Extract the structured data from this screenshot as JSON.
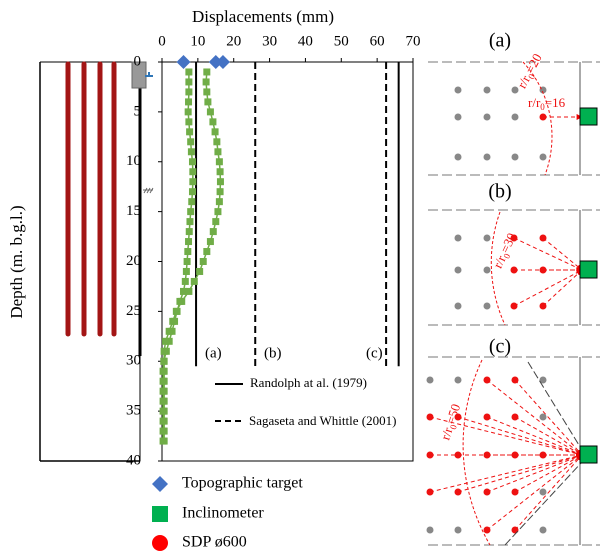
{
  "chart_data": {
    "type": "scatter",
    "x_label": "Displacements (mm)",
    "y_label": "Depth (m. b.g.l.)",
    "xlim": [
      0,
      70
    ],
    "xticks": [
      0,
      10,
      20,
      30,
      40,
      50,
      60,
      70
    ],
    "ylim": [
      0,
      40
    ],
    "yticks": [
      0,
      5,
      10,
      15,
      20,
      25,
      30,
      35,
      40
    ],
    "y_inverted": true,
    "series": [
      {
        "name": "Topographic target",
        "color": "#4472c4",
        "marker": "diamond",
        "x": [
          6,
          15,
          17
        ],
        "y": [
          0,
          0,
          0
        ]
      },
      {
        "name": "Inclinometer",
        "color": "#70ad47",
        "marker": "square",
        "x": [
          7.5,
          7.5,
          7.5,
          7.4,
          7.3,
          7.5,
          7.7,
          8.0,
          8.2,
          8.5,
          8.6,
          8.6,
          8.5,
          8.3,
          8.0,
          7.8,
          7.6,
          7.4,
          7.2,
          7.0,
          6.8,
          6.5,
          6.0,
          5.0,
          4.2,
          3.5,
          2.8,
          2.0,
          1.2,
          0.5,
          0.3,
          0.3,
          0.3,
          0.3,
          0.3,
          0.3,
          0.3,
          0.3,
          null,
          12.5,
          12.3,
          12.5,
          12.8,
          13.5,
          14.2,
          14.8,
          15.3,
          15.6,
          16.0,
          16.2,
          16.3,
          16.2,
          16.0,
          15.6,
          15.0,
          14.3,
          13.5,
          12.5,
          11.5,
          10.5,
          9.0,
          7.5,
          5.5,
          4.0,
          3.0,
          2.0,
          1.0,
          0.6,
          0.6,
          0.6,
          0.6,
          0.6,
          0.6,
          0.6,
          0.6,
          0.6,
          0.6
        ],
        "y": [
          1,
          2,
          3,
          4,
          5,
          6,
          7,
          8,
          9,
          10,
          11,
          12,
          13,
          14,
          15,
          16,
          17,
          18,
          19,
          20,
          21,
          22,
          23,
          24,
          25,
          26,
          27,
          28,
          29,
          30,
          31,
          32,
          33,
          34,
          35,
          36,
          37,
          38,
          null,
          1,
          2,
          3,
          4,
          5,
          6,
          7,
          8,
          9,
          10,
          11,
          12,
          13,
          14,
          15,
          16,
          17,
          18,
          19,
          20,
          21,
          22,
          23,
          24,
          25,
          26,
          27,
          28,
          29,
          30,
          31,
          32,
          33,
          34,
          35,
          36,
          37,
          38
        ]
      }
    ],
    "extra_legend": {
      "name": "SDP ø600",
      "color": "#ff0000",
      "marker": "circle"
    },
    "reference_lines": [
      {
        "name": "Randolph at al. (1979)",
        "style": "solid",
        "x": [
          9.5,
          66
        ],
        "y_end": 30.5
      },
      {
        "name": "Sagaseta and Whittle (2001)",
        "style": "dashed",
        "x": [
          26,
          62.5
        ],
        "y_end": 30.5
      }
    ],
    "case_labels": [
      "(a)",
      "(b)",
      "(c)"
    ]
  },
  "panels": [
    {
      "label": "(a)",
      "radius_labels": [
        {
          "pre": "r/r",
          "sub": "0",
          "post": "=20"
        },
        {
          "pre": "r/r",
          "sub": "0",
          "post": "=16"
        }
      ]
    },
    {
      "label": "(b)",
      "radius_labels": [
        {
          "pre": "r/r",
          "sub": "0",
          "post": "=30"
        }
      ]
    },
    {
      "label": "(c)",
      "radius_labels": [
        {
          "pre": "r/r",
          "sub": "0",
          "post": "=50"
        }
      ]
    }
  ]
}
